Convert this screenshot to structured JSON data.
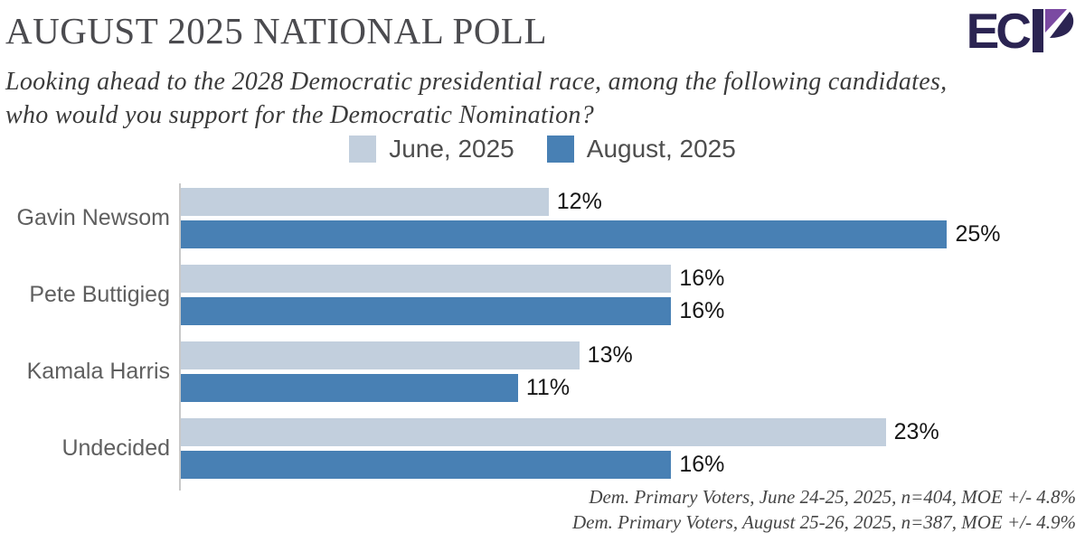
{
  "header": {
    "title": "AUGUST 2025 NATIONAL POLL",
    "subtitle_line1": "Looking ahead to the 2028 Democratic presidential race, among the following candidates,",
    "subtitle_line2": "who would you support for the Democratic Nomination?",
    "logo_text": "EC"
  },
  "colors": {
    "june_light_blue": "#c2cfdd",
    "august_dark_blue": "#4880b4",
    "logo_navy": "#2b2452",
    "logo_purple": "#7b4aa2",
    "axis_gray": "#c9c9c9"
  },
  "legend": [
    {
      "label": "June, 2025",
      "color": "#c2cfdd"
    },
    {
      "label": "August, 2025",
      "color": "#4880b4"
    }
  ],
  "chart_data": {
    "type": "bar",
    "orientation": "horizontal",
    "title": "AUGUST 2025 NATIONAL POLL",
    "categories": [
      "Gavin Newsom",
      "Pete Buttigieg",
      "Kamala Harris",
      "Undecided"
    ],
    "series": [
      {
        "name": "June, 2025",
        "color": "#c2cfdd",
        "values": [
          12,
          16,
          13,
          23
        ]
      },
      {
        "name": "August, 2025",
        "color": "#4880b4",
        "values": [
          25,
          16,
          11,
          16
        ]
      }
    ],
    "value_suffix": "%",
    "xlim": [
      0,
      29.5
    ],
    "grid": false,
    "legend_position": "top-center",
    "data_labels": true
  },
  "footer": {
    "line1": "Dem. Primary Voters, June 24-25, 2025, n=404, MOE +/- 4.8%",
    "line2": "Dem. Primary Voters, August 25-26, 2025, n=387, MOE +/- 4.9%"
  }
}
